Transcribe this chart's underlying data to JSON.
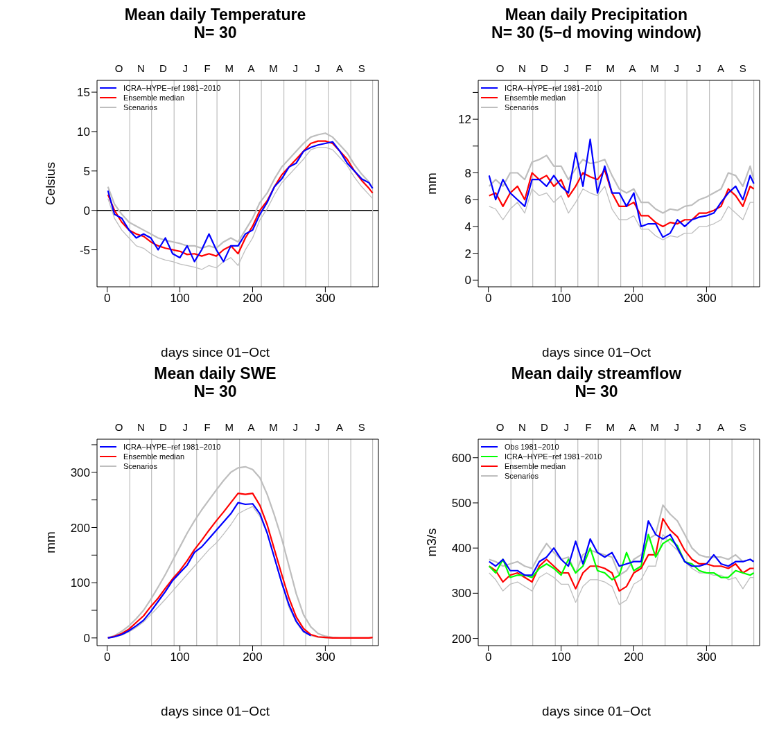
{
  "chart_data": [
    {
      "type": "line",
      "title": "Mean daily Temperature\nN= 30",
      "xlabel": "days since 01−Oct",
      "ylabel": "Celsius",
      "legend": "top left",
      "xlim": [
        -14,
        373
      ],
      "xticks": [
        0,
        100,
        200,
        300
      ],
      "ylim": [
        -9.7,
        16.5
      ],
      "yticks": [
        -5,
        0,
        5,
        10,
        15
      ],
      "annotations": [
        "O",
        "N",
        "D",
        "J",
        "F",
        "M",
        "A",
        "M",
        "J",
        "J",
        "A",
        "S"
      ],
      "ref_lines": [
        {
          "axis": "y",
          "value": 0,
          "color": "#000000"
        },
        {
          "axis": "x",
          "value": 31,
          "color": "#bebebe"
        },
        {
          "axis": "x",
          "value": 61,
          "color": "#bebebe"
        },
        {
          "axis": "x",
          "value": 92,
          "color": "#bebebe"
        },
        {
          "axis": "x",
          "value": 123,
          "color": "#bebebe"
        },
        {
          "axis": "x",
          "value": 151,
          "color": "#bebebe"
        },
        {
          "axis": "x",
          "value": 182,
          "color": "#bebebe"
        },
        {
          "axis": "x",
          "value": 212,
          "color": "#bebebe"
        },
        {
          "axis": "x",
          "value": 243,
          "color": "#bebebe"
        },
        {
          "axis": "x",
          "value": 273,
          "color": "#bebebe"
        },
        {
          "axis": "x",
          "value": 304,
          "color": "#bebebe"
        },
        {
          "axis": "x",
          "value": 335,
          "color": "#bebebe"
        },
        {
          "axis": "x",
          "value": 365,
          "color": "#bebebe"
        }
      ],
      "x": [
        1,
        10,
        20,
        30,
        40,
        50,
        60,
        70,
        80,
        90,
        100,
        110,
        120,
        130,
        140,
        150,
        160,
        170,
        180,
        190,
        200,
        210,
        220,
        230,
        240,
        250,
        260,
        270,
        280,
        290,
        300,
        310,
        320,
        330,
        340,
        350,
        360,
        365
      ],
      "series": [
        {
          "name": "ICRA−HYPE−ref 1981−2010",
          "color": "#0000ff",
          "values": [
            2.5,
            -0.5,
            -1,
            -2.5,
            -3.5,
            -3,
            -3.5,
            -5,
            -3.5,
            -5.5,
            -6,
            -4.5,
            -6.5,
            -5,
            -3,
            -5,
            -6.5,
            -4.5,
            -4.5,
            -3,
            -2.5,
            -0.5,
            1,
            3,
            4,
            5.5,
            6,
            7.5,
            8,
            8.3,
            8.5,
            8.7,
            7.5,
            6,
            5,
            4,
            3.5,
            2.8
          ]
        },
        {
          "name": "Ensemble median",
          "color": "#ff0000",
          "values": [
            2,
            0,
            -1.5,
            -2.5,
            -3,
            -3.3,
            -4,
            -4.5,
            -4.8,
            -5,
            -5.2,
            -5.6,
            -5.5,
            -5.8,
            -5.5,
            -5.8,
            -5,
            -4.5,
            -5.5,
            -3.5,
            -2,
            0,
            1.2,
            3,
            4.5,
            5.5,
            6.5,
            7.5,
            8.5,
            8.8,
            8.8,
            8.5,
            7.5,
            6.5,
            5,
            3.8,
            2.8,
            2.2
          ]
        },
        {
          "name": "Scenarios",
          "color": "#bebebe",
          "values": [
            3,
            0.8,
            -0.5,
            -1.5,
            -2,
            -2.5,
            -3,
            -3.5,
            -3.8,
            -4,
            -4.2,
            -4.5,
            -4.5,
            -4.8,
            -4.5,
            -4.8,
            -4,
            -3.5,
            -4,
            -2.5,
            -1,
            1,
            2.2,
            4,
            5.5,
            6.5,
            7.5,
            8.5,
            9.3,
            9.6,
            9.8,
            9.3,
            8.3,
            7.3,
            5.8,
            4.6,
            3.6,
            2.8
          ]
        },
        {
          "color": "#bebebe",
          "values": [
            1.5,
            -1,
            -2.5,
            -3.5,
            -4.5,
            -4.8,
            -5.5,
            -6,
            -6.3,
            -6.5,
            -6.8,
            -7,
            -7.2,
            -7.5,
            -7,
            -7.3,
            -6.5,
            -6,
            -7,
            -5,
            -3.5,
            -1.2,
            0.2,
            2,
            3.5,
            4.5,
            5.5,
            6.5,
            7.7,
            8,
            8,
            7.7,
            6.7,
            5.7,
            4.2,
            3,
            2,
            1.5
          ]
        }
      ]
    },
    {
      "type": "line",
      "title": "Mean daily Precipitation\nN= 30 (5−d moving window)",
      "xlabel": "days since 01−Oct",
      "ylabel": "mm",
      "legend": "top left",
      "xlim": [
        -14,
        373
      ],
      "xticks": [
        0,
        100,
        200,
        300
      ],
      "ylim": [
        -0.5,
        14.9
      ],
      "yticks": [
        0,
        2,
        4,
        6,
        8,
        {
          "value": 10,
          "label": null
        },
        12,
        {
          "value": 14,
          "label": null
        }
      ],
      "annotations": [
        "O",
        "N",
        "D",
        "J",
        "F",
        "M",
        "A",
        "M",
        "J",
        "J",
        "A",
        "S"
      ],
      "ref_lines": [
        {
          "axis": "x",
          "value": 31,
          "color": "#bebebe"
        },
        {
          "axis": "x",
          "value": 61,
          "color": "#bebebe"
        },
        {
          "axis": "x",
          "value": 92,
          "color": "#bebebe"
        },
        {
          "axis": "x",
          "value": 123,
          "color": "#bebebe"
        },
        {
          "axis": "x",
          "value": 151,
          "color": "#bebebe"
        },
        {
          "axis": "x",
          "value": 182,
          "color": "#bebebe"
        },
        {
          "axis": "x",
          "value": 212,
          "color": "#bebebe"
        },
        {
          "axis": "x",
          "value": 243,
          "color": "#bebebe"
        },
        {
          "axis": "x",
          "value": 273,
          "color": "#bebebe"
        },
        {
          "axis": "x",
          "value": 304,
          "color": "#bebebe"
        },
        {
          "axis": "x",
          "value": 335,
          "color": "#bebebe"
        },
        {
          "axis": "x",
          "value": 365,
          "color": "#bebebe"
        }
      ],
      "x": [
        1,
        10,
        20,
        30,
        40,
        50,
        60,
        70,
        80,
        90,
        100,
        110,
        120,
        130,
        140,
        150,
        160,
        170,
        180,
        190,
        200,
        210,
        220,
        230,
        240,
        250,
        260,
        270,
        280,
        290,
        300,
        310,
        320,
        330,
        340,
        350,
        360,
        365
      ],
      "series": [
        {
          "name": "ICRA−HYPE−ref 1981−2010",
          "color": "#0000ff",
          "values": [
            7.8,
            6,
            7.5,
            6.5,
            6,
            5.5,
            7.5,
            7.5,
            7,
            7.8,
            7,
            6.5,
            9.5,
            7,
            10.5,
            6.5,
            8.5,
            6.5,
            6.5,
            5.5,
            6.5,
            4,
            4.2,
            4.2,
            3.2,
            3.5,
            4.5,
            4,
            4.5,
            4.7,
            4.8,
            5,
            5.8,
            6.5,
            7,
            6,
            7.8,
            7.2
          ]
        },
        {
          "name": "Ensemble median",
          "color": "#ff0000",
          "values": [
            6.3,
            6.5,
            5.5,
            6.5,
            7,
            6,
            8,
            7.5,
            7.8,
            7,
            7.5,
            6.2,
            7,
            8,
            7.7,
            7.5,
            8.2,
            6.5,
            5.5,
            5.5,
            5.8,
            4.8,
            4.8,
            4.3,
            4,
            4.3,
            4.2,
            4.5,
            4.5,
            5,
            5,
            5.2,
            5.5,
            6.8,
            6.3,
            5.5,
            7,
            6.8
          ]
        },
        {
          "name": "Scenarios",
          "color": "#bebebe",
          "values": [
            7,
            7.5,
            7,
            8,
            8,
            7.5,
            8.8,
            9,
            9.3,
            8.5,
            8.5,
            7.5,
            8.3,
            9,
            8.7,
            8.8,
            9,
            7.8,
            6.8,
            6.5,
            6.8,
            5.8,
            5.8,
            5.3,
            5,
            5.3,
            5.2,
            5.5,
            5.6,
            6,
            6.2,
            6.5,
            6.8,
            8,
            7.8,
            7,
            8.5,
            7.5
          ]
        },
        {
          "color": "#bebebe",
          "values": [
            5.5,
            5.3,
            4.5,
            5.3,
            5.8,
            5,
            6.8,
            6.3,
            6.5,
            5.8,
            6.3,
            5,
            5.8,
            6.8,
            6.5,
            6.3,
            7,
            5.3,
            4.5,
            4.5,
            4.8,
            3.8,
            3.8,
            3.3,
            3,
            3.3,
            3.2,
            3.5,
            3.5,
            4,
            4,
            4.2,
            4.5,
            5.5,
            5,
            4.5,
            5.8,
            5.8
          ]
        }
      ]
    },
    {
      "type": "line",
      "title": "Mean daily SWE\nN= 30",
      "xlabel": "days since 01−Oct",
      "ylabel": "mm",
      "legend": "top left",
      "xlim": [
        -14,
        373
      ],
      "xticks": [
        0,
        100,
        200,
        300
      ],
      "ylim": [
        -14,
        360
      ],
      "yticks": [
        0,
        {
          "value": 50,
          "label": null
        },
        100,
        {
          "value": 150,
          "label": null
        },
        200,
        {
          "value": 250,
          "label": null
        },
        300,
        {
          "value": 350,
          "label": null
        }
      ],
      "annotations": [
        "O",
        "N",
        "D",
        "J",
        "F",
        "M",
        "A",
        "M",
        "J",
        "J",
        "A",
        "S"
      ],
      "ref_lines": [
        {
          "axis": "x",
          "value": 31,
          "color": "#bebebe"
        },
        {
          "axis": "x",
          "value": 61,
          "color": "#bebebe"
        },
        {
          "axis": "x",
          "value": 92,
          "color": "#bebebe"
        },
        {
          "axis": "x",
          "value": 123,
          "color": "#bebebe"
        },
        {
          "axis": "x",
          "value": 151,
          "color": "#bebebe"
        },
        {
          "axis": "x",
          "value": 182,
          "color": "#bebebe"
        },
        {
          "axis": "x",
          "value": 212,
          "color": "#bebebe"
        },
        {
          "axis": "x",
          "value": 243,
          "color": "#bebebe"
        },
        {
          "axis": "x",
          "value": 273,
          "color": "#bebebe"
        },
        {
          "axis": "x",
          "value": 304,
          "color": "#bebebe"
        },
        {
          "axis": "x",
          "value": 335,
          "color": "#bebebe"
        },
        {
          "axis": "x",
          "value": 365,
          "color": "#bebebe"
        }
      ],
      "x": [
        1,
        10,
        20,
        30,
        40,
        50,
        60,
        70,
        80,
        90,
        100,
        110,
        120,
        130,
        140,
        150,
        160,
        170,
        180,
        190,
        200,
        210,
        220,
        230,
        240,
        250,
        260,
        270,
        280,
        290,
        300,
        310,
        320,
        330,
        340,
        350,
        360,
        365
      ],
      "series": [
        {
          "name": "ICRA−HYPE−ref 1981−2010",
          "color": "#0000ff",
          "values": [
            0,
            2,
            6,
            13,
            22,
            32,
            48,
            66,
            84,
            104,
            118,
            132,
            155,
            165,
            180,
            195,
            210,
            225,
            245,
            242,
            243,
            225,
            190,
            145,
            100,
            60,
            30,
            12,
            4,
            null,
            null,
            null,
            null,
            null,
            null,
            null,
            null,
            null
          ]
        },
        {
          "name": "Ensemble median",
          "color": "#ff0000",
          "values": [
            0,
            3,
            8,
            16,
            28,
            40,
            57,
            72,
            90,
            107,
            122,
            140,
            160,
            177,
            195,
            212,
            228,
            245,
            262,
            260,
            262,
            240,
            205,
            160,
            115,
            72,
            38,
            17,
            6,
            2,
            1,
            0,
            0,
            0,
            0,
            0,
            0,
            1
          ]
        },
        {
          "name": "Scenarios",
          "color": "#bebebe",
          "values": [
            0,
            4,
            12,
            22,
            35,
            50,
            70,
            92,
            115,
            140,
            165,
            190,
            212,
            232,
            250,
            268,
            285,
            300,
            308,
            310,
            305,
            290,
            260,
            222,
            180,
            130,
            80,
            42,
            20,
            8,
            3,
            1,
            0,
            0,
            0,
            0,
            0,
            0
          ]
        },
        {
          "color": "#bebebe",
          "values": [
            0,
            2,
            5,
            11,
            19,
            29,
            42,
            56,
            70,
            85,
            100,
            115,
            130,
            145,
            160,
            172,
            188,
            205,
            225,
            232,
            238,
            220,
            190,
            145,
            98,
            55,
            28,
            10,
            4,
            1,
            0,
            0,
            0,
            0,
            0,
            0,
            0,
            0
          ]
        }
      ]
    },
    {
      "type": "line",
      "title": "Mean daily streamflow\nN= 30",
      "xlabel": "days since 01−Oct",
      "ylabel": "m3/s",
      "legend": "top left",
      "xlim": [
        -14,
        373
      ],
      "xticks": [
        0,
        100,
        200,
        300
      ],
      "ylim": [
        184,
        641
      ],
      "yticks": [
        200,
        300,
        400,
        500,
        600
      ],
      "annotations": [
        "O",
        "N",
        "D",
        "J",
        "F",
        "M",
        "A",
        "M",
        "J",
        "J",
        "A",
        "S"
      ],
      "ref_lines": [
        {
          "axis": "x",
          "value": 31,
          "color": "#bebebe"
        },
        {
          "axis": "x",
          "value": 61,
          "color": "#bebebe"
        },
        {
          "axis": "x",
          "value": 92,
          "color": "#bebebe"
        },
        {
          "axis": "x",
          "value": 123,
          "color": "#bebebe"
        },
        {
          "axis": "x",
          "value": 151,
          "color": "#bebebe"
        },
        {
          "axis": "x",
          "value": 182,
          "color": "#bebebe"
        },
        {
          "axis": "x",
          "value": 212,
          "color": "#bebebe"
        },
        {
          "axis": "x",
          "value": 243,
          "color": "#bebebe"
        },
        {
          "axis": "x",
          "value": 273,
          "color": "#bebebe"
        },
        {
          "axis": "x",
          "value": 304,
          "color": "#bebebe"
        },
        {
          "axis": "x",
          "value": 335,
          "color": "#bebebe"
        },
        {
          "axis": "x",
          "value": 365,
          "color": "#bebebe"
        }
      ],
      "x": [
        1,
        10,
        20,
        30,
        40,
        50,
        60,
        70,
        80,
        90,
        100,
        110,
        120,
        130,
        140,
        150,
        160,
        170,
        180,
        190,
        200,
        210,
        220,
        230,
        240,
        250,
        260,
        270,
        280,
        290,
        300,
        310,
        320,
        330,
        340,
        350,
        360,
        365
      ],
      "series": [
        {
          "name": "Obs 1981−2010",
          "color": "#0000ff",
          "values": [
            370,
            360,
            375,
            350,
            350,
            340,
            340,
            370,
            380,
            400,
            375,
            360,
            415,
            365,
            420,
            390,
            380,
            390,
            360,
            365,
            370,
            370,
            460,
            430,
            420,
            430,
            400,
            370,
            360,
            360,
            365,
            385,
            365,
            360,
            370,
            370,
            375,
            370
          ]
        },
        {
          "name": "ICRA−HYPE−ref 1981−2010",
          "color": "#00ff00",
          "values": [
            360,
            345,
            375,
            335,
            340,
            340,
            335,
            355,
            365,
            355,
            340,
            375,
            345,
            360,
            400,
            350,
            345,
            330,
            340,
            390,
            350,
            360,
            430,
            380,
            410,
            420,
            405,
            370,
            365,
            350,
            345,
            345,
            335,
            335,
            350,
            345,
            340,
            345
          ]
        },
        {
          "name": "Ensemble median",
          "color": "#ff0000",
          "values": [
            360,
            350,
            325,
            340,
            345,
            335,
            325,
            360,
            375,
            360,
            345,
            345,
            310,
            345,
            360,
            360,
            355,
            345,
            305,
            315,
            345,
            355,
            385,
            385,
            465,
            440,
            425,
            395,
            375,
            365,
            365,
            360,
            360,
            355,
            365,
            345,
            355,
            355
          ]
        },
        {
          "name": "Scenarios",
          "color": "#bebebe",
          "values": [
            375,
            370,
            360,
            365,
            370,
            360,
            355,
            385,
            410,
            390,
            375,
            380,
            345,
            385,
            395,
            390,
            385,
            380,
            340,
            350,
            375,
            385,
            420,
            430,
            495,
            475,
            460,
            430,
            400,
            385,
            380,
            380,
            380,
            375,
            385,
            370,
            375,
            370
          ]
        },
        {
          "color": "#bebebe",
          "values": [
            345,
            330,
            305,
            320,
            325,
            315,
            305,
            335,
            345,
            335,
            320,
            320,
            280,
            315,
            330,
            330,
            325,
            315,
            275,
            285,
            320,
            330,
            360,
            360,
            430,
            410,
            395,
            370,
            355,
            345,
            345,
            340,
            340,
            330,
            335,
            310,
            335,
            335
          ]
        }
      ]
    }
  ]
}
